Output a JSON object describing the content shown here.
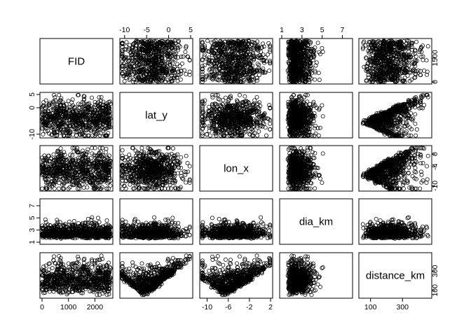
{
  "chart_data": {
    "type": "scatter",
    "subtype": "pairs-matrix",
    "variables": [
      "FID",
      "lat_y",
      "lon_x",
      "dia_km",
      "distance_km"
    ],
    "ranges": {
      "FID": [
        0,
        2600
      ],
      "lat_y": [
        -10.6,
        5.0
      ],
      "lon_x": [
        -11.0,
        2.0
      ],
      "dia_km": [
        1.0,
        7.8
      ],
      "distance_km": [
        40,
        470
      ]
    },
    "axis_ticks": {
      "FID": [
        "0",
        "1000",
        "2000"
      ],
      "FID_right": [
        "0",
        "1500"
      ],
      "lat_y_top": [
        "-10",
        "-5",
        "0",
        "5"
      ],
      "lat_y_left": [
        "-10",
        "0",
        "5"
      ],
      "lon_x_bottom": [
        "-10",
        "-6",
        "-2",
        "2"
      ],
      "lon_x_right": [
        "-10",
        "-4",
        "0"
      ],
      "dia_km_top": [
        "1",
        "3",
        "5",
        "7"
      ],
      "dia_km_left": [
        "1",
        "3",
        "5",
        "7"
      ],
      "distance_km_bottom": [
        "100",
        "300"
      ],
      "distance_km_right": [
        "100",
        "300"
      ]
    },
    "tick_values": {
      "FID_bottom": [
        0,
        1000,
        2000
      ],
      "FID_right": [
        0,
        1500
      ],
      "lat_y_top": [
        -10,
        -5,
        0,
        5
      ],
      "lat_y_left": [
        -10,
        0,
        5
      ],
      "lon_x_bottom": [
        -10,
        -6,
        -2,
        2
      ],
      "lon_x_right": [
        -10,
        -4,
        0
      ],
      "dia_km_top": [
        1,
        3,
        5,
        7
      ],
      "dia_km_left": [
        1,
        3,
        5,
        7
      ],
      "distance_km_bottom": [
        100,
        300
      ],
      "distance_km_right": [
        100,
        300
      ]
    },
    "point_style": "open-circle",
    "point_color": "#000000",
    "sample_points": 700
  }
}
